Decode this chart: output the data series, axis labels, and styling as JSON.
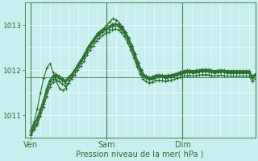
{
  "title": "",
  "xlabel": "Pression niveau de la mer( hPa )",
  "ylabel": "",
  "bg_color": "#c8eef0",
  "line_color": "#2d6e2d",
  "grid_color": "#ffffff",
  "ylim": [
    1010.5,
    1013.5
  ],
  "yticks": [
    1011,
    1012,
    1013
  ],
  "day_labels": [
    "Ven",
    "Sam",
    "Dim"
  ],
  "day_positions": [
    0,
    24,
    48
  ],
  "dark_vlines": [
    0,
    24,
    48
  ],
  "hline_y": 1011.85,
  "marker": "+",
  "markersize": 3,
  "linewidth": 0.8,
  "series": [
    [
      1010.6,
      1010.75,
      1010.9,
      1011.1,
      1011.3,
      1011.55,
      1011.75,
      1011.85,
      1011.9,
      1011.85,
      1011.8,
      1011.75,
      1011.82,
      1011.9,
      1012.0,
      1012.1,
      1012.2,
      1012.3,
      1012.45,
      1012.55,
      1012.65,
      1012.75,
      1012.82,
      1012.88,
      1012.92,
      1012.95,
      1013.0,
      1013.02,
      1013.0,
      1012.95,
      1012.85,
      1012.72,
      1012.55,
      1012.38,
      1012.18,
      1012.02,
      1011.9,
      1011.85,
      1011.82,
      1011.84,
      1011.87,
      1011.88,
      1011.87,
      1011.86,
      1011.87,
      1011.88,
      1011.9,
      1011.92,
      1011.95,
      1011.97,
      1011.98,
      1011.98,
      1011.97,
      1011.98,
      1011.99,
      1012.0,
      1012.0,
      1012.0,
      1011.98,
      1011.97,
      1011.98,
      1011.99,
      1011.98,
      1011.97,
      1011.97,
      1011.97,
      1011.97,
      1011.97,
      1011.97,
      1011.97,
      1011.97,
      1011.85,
      1011.9
    ],
    [
      1010.65,
      1010.8,
      1010.95,
      1011.15,
      1011.35,
      1011.6,
      1011.78,
      1011.88,
      1011.92,
      1011.87,
      1011.82,
      1011.78,
      1011.85,
      1011.92,
      1012.02,
      1012.12,
      1012.22,
      1012.32,
      1012.47,
      1012.57,
      1012.67,
      1012.77,
      1012.84,
      1012.9,
      1012.94,
      1012.97,
      1013.02,
      1013.04,
      1013.02,
      1012.97,
      1012.87,
      1012.74,
      1012.57,
      1012.4,
      1012.2,
      1012.04,
      1011.92,
      1011.87,
      1011.84,
      1011.86,
      1011.89,
      1011.9,
      1011.89,
      1011.88,
      1011.89,
      1011.9,
      1011.92,
      1011.94,
      1011.97,
      1011.99,
      1012.0,
      1012.0,
      1011.99,
      1012.0,
      1012.01,
      1012.02,
      1012.02,
      1012.02,
      1012.0,
      1011.99,
      1012.0,
      1012.01,
      1012.0,
      1011.99,
      1011.99,
      1011.99,
      1011.99,
      1011.99,
      1011.99,
      1011.99,
      1011.99,
      1011.87,
      1011.92
    ],
    [
      1010.58,
      1010.7,
      1010.82,
      1011.05,
      1011.25,
      1011.5,
      1011.7,
      1011.8,
      1011.87,
      1011.82,
      1011.77,
      1011.72,
      1011.79,
      1011.87,
      1011.97,
      1012.07,
      1012.17,
      1012.27,
      1012.42,
      1012.52,
      1012.62,
      1012.72,
      1012.79,
      1012.85,
      1012.89,
      1012.92,
      1012.97,
      1012.99,
      1012.97,
      1012.92,
      1012.82,
      1012.69,
      1012.52,
      1012.35,
      1012.15,
      1011.99,
      1011.87,
      1011.82,
      1011.79,
      1011.81,
      1011.84,
      1011.85,
      1011.84,
      1011.83,
      1011.84,
      1011.85,
      1011.87,
      1011.89,
      1011.92,
      1011.94,
      1011.95,
      1011.95,
      1011.94,
      1011.95,
      1011.96,
      1011.97,
      1011.97,
      1011.97,
      1011.95,
      1011.94,
      1011.95,
      1011.96,
      1011.95,
      1011.94,
      1011.94,
      1011.94,
      1011.94,
      1011.94,
      1011.94,
      1011.94,
      1011.94,
      1011.82,
      1011.87
    ],
    [
      1010.68,
      1010.85,
      1011.15,
      1011.5,
      1011.82,
      1012.05,
      1012.15,
      1011.95,
      1011.75,
      1011.6,
      1011.55,
      1011.6,
      1011.72,
      1011.85,
      1012.0,
      1012.15,
      1012.25,
      1012.38,
      1012.52,
      1012.62,
      1012.72,
      1012.82,
      1012.88,
      1012.93,
      1013.0,
      1013.08,
      1013.15,
      1013.12,
      1013.05,
      1012.97,
      1012.85,
      1012.72,
      1012.55,
      1012.37,
      1012.17,
      1012.0,
      1011.88,
      1011.84,
      1011.82,
      1011.83,
      1011.86,
      1011.87,
      1011.86,
      1011.85,
      1011.86,
      1011.87,
      1011.89,
      1011.91,
      1011.94,
      1011.96,
      1011.97,
      1011.97,
      1011.96,
      1011.97,
      1011.98,
      1011.99,
      1011.99,
      1011.99,
      1011.97,
      1011.96,
      1011.97,
      1011.98,
      1011.97,
      1011.96,
      1011.96,
      1011.96,
      1011.96,
      1011.96,
      1011.96,
      1011.96,
      1011.84,
      1011.89
    ],
    [
      1010.55,
      1010.68,
      1010.78,
      1010.98,
      1011.18,
      1011.42,
      1011.62,
      1011.73,
      1011.8,
      1011.75,
      1011.7,
      1011.65,
      1011.72,
      1011.8,
      1011.9,
      1012.0,
      1012.1,
      1012.2,
      1012.35,
      1012.45,
      1012.55,
      1012.65,
      1012.72,
      1012.78,
      1012.82,
      1012.85,
      1012.9,
      1012.92,
      1012.9,
      1012.85,
      1012.75,
      1012.62,
      1012.45,
      1012.28,
      1012.08,
      1011.92,
      1011.8,
      1011.75,
      1011.72,
      1011.74,
      1011.77,
      1011.78,
      1011.77,
      1011.76,
      1011.77,
      1011.78,
      1011.8,
      1011.82,
      1011.85,
      1011.87,
      1011.88,
      1011.88,
      1011.87,
      1011.88,
      1011.89,
      1011.9,
      1011.9,
      1011.9,
      1011.88,
      1011.87,
      1011.88,
      1011.89,
      1011.88,
      1011.87,
      1011.87,
      1011.87,
      1011.87,
      1011.87,
      1011.87,
      1011.87,
      1011.87,
      1011.75,
      1011.8
    ]
  ]
}
